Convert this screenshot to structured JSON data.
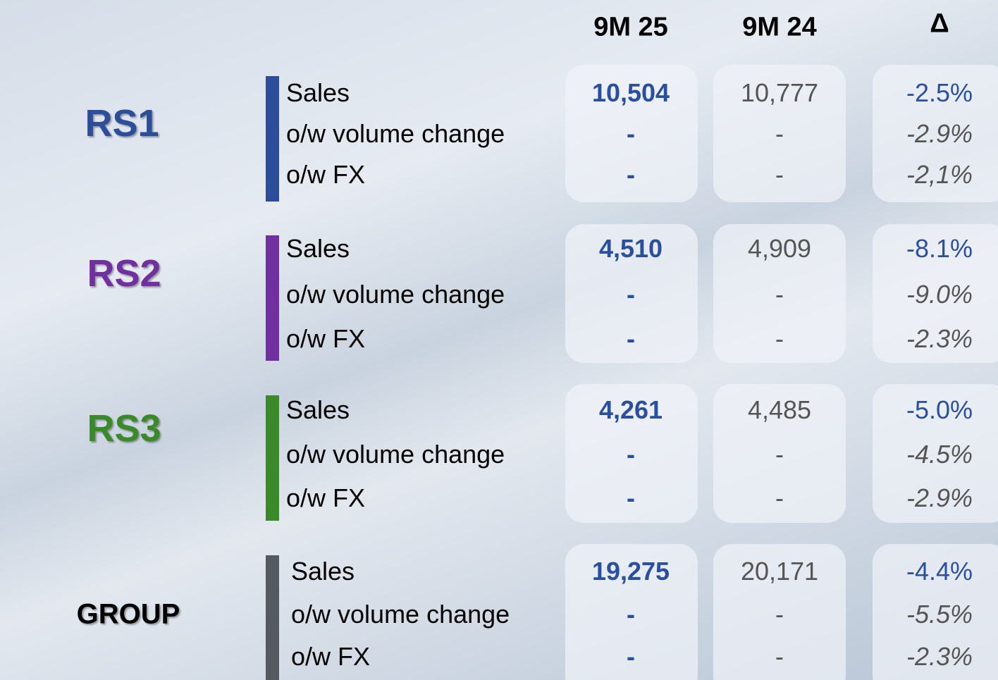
{
  "header": {
    "columns": [
      "9M 25",
      "9M 24",
      "Δ"
    ]
  },
  "segments": [
    {
      "name": "RS1",
      "rows": [
        [
          "Sales",
          "10,504",
          "10,777",
          "-2.5%"
        ],
        [
          "o/w volume change",
          "-",
          "-",
          "-2.9%"
        ],
        [
          "o/w FX",
          "-",
          "-",
          "-2,1%"
        ]
      ]
    },
    {
      "name": "RS2",
      "rows": [
        [
          "Sales",
          "4,510",
          "4,909",
          "-8.1%"
        ],
        [
          "o/w volume change",
          "-",
          "-",
          "-9.0%"
        ],
        [
          "o/w FX",
          "-",
          "-",
          "-2.3%"
        ]
      ]
    },
    {
      "name": "RS3",
      "rows": [
        [
          "Sales",
          "4,261",
          "4,485",
          "-5.0%"
        ],
        [
          "o/w volume change",
          "-",
          "-",
          "-4.5%"
        ],
        [
          "o/w FX",
          "-",
          "-",
          "-2.9%"
        ]
      ]
    },
    {
      "name": "GROUP",
      "rows": [
        [
          "Sales",
          "19,275",
          "20,171",
          "-4.4%"
        ],
        [
          "o/w volume change",
          "-",
          "-",
          "-5.5%"
        ],
        [
          "o/w FX",
          "-",
          "-",
          "-2.3%"
        ]
      ]
    }
  ]
}
